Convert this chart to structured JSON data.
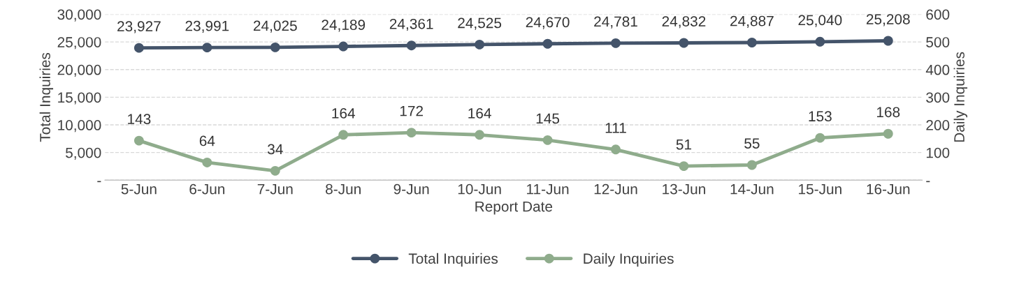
{
  "chart_data": {
    "type": "line",
    "xlabel": "Report Date",
    "ylabel": "Total Inquiries",
    "y2label": "Daily Inquiries",
    "categories": [
      "5-Jun",
      "6-Jun",
      "7-Jun",
      "8-Jun",
      "9-Jun",
      "10-Jun",
      "11-Jun",
      "12-Jun",
      "13-Jun",
      "14-Jun",
      "15-Jun",
      "16-Jun"
    ],
    "series": [
      {
        "name": "Total Inquiries",
        "color": "#44546a",
        "values": [
          23927,
          23991,
          24025,
          24189,
          24361,
          24525,
          24670,
          24781,
          24832,
          24887,
          25040,
          25208
        ],
        "value_labels": [
          "23,927",
          "23,991",
          "24,025",
          "24,189",
          "24,361",
          "24,525",
          "24,670",
          "24,781",
          "24,832",
          "24,887",
          "25,040",
          "25,208"
        ]
      },
      {
        "name": "Daily Inquiries",
        "color": "#8fac8c",
        "axis": "y2",
        "values": [
          143,
          64,
          34,
          164,
          172,
          164,
          145,
          111,
          51,
          55,
          153,
          168
        ],
        "value_labels": [
          "143",
          "64",
          "34",
          "164",
          "172",
          "164",
          "145",
          "111",
          "51",
          "55",
          "153",
          "168"
        ]
      }
    ],
    "ylim": [
      0,
      30000
    ],
    "yticks": [
      {
        "value": 0,
        "label": "-"
      },
      {
        "value": 5000,
        "label": "5,000"
      },
      {
        "value": 10000,
        "label": "10,000"
      },
      {
        "value": 15000,
        "label": "15,000"
      },
      {
        "value": 20000,
        "label": "20,000"
      },
      {
        "value": 25000,
        "label": "25,000"
      },
      {
        "value": 30000,
        "label": "30,000"
      }
    ],
    "y2lim": [
      0,
      600
    ],
    "y2ticks": [
      {
        "value": 0,
        "label": "-"
      },
      100,
      200,
      300,
      400,
      500,
      600
    ],
    "grid": "y",
    "legend": "bottom",
    "marker": "circle",
    "line_style": "solid"
  }
}
